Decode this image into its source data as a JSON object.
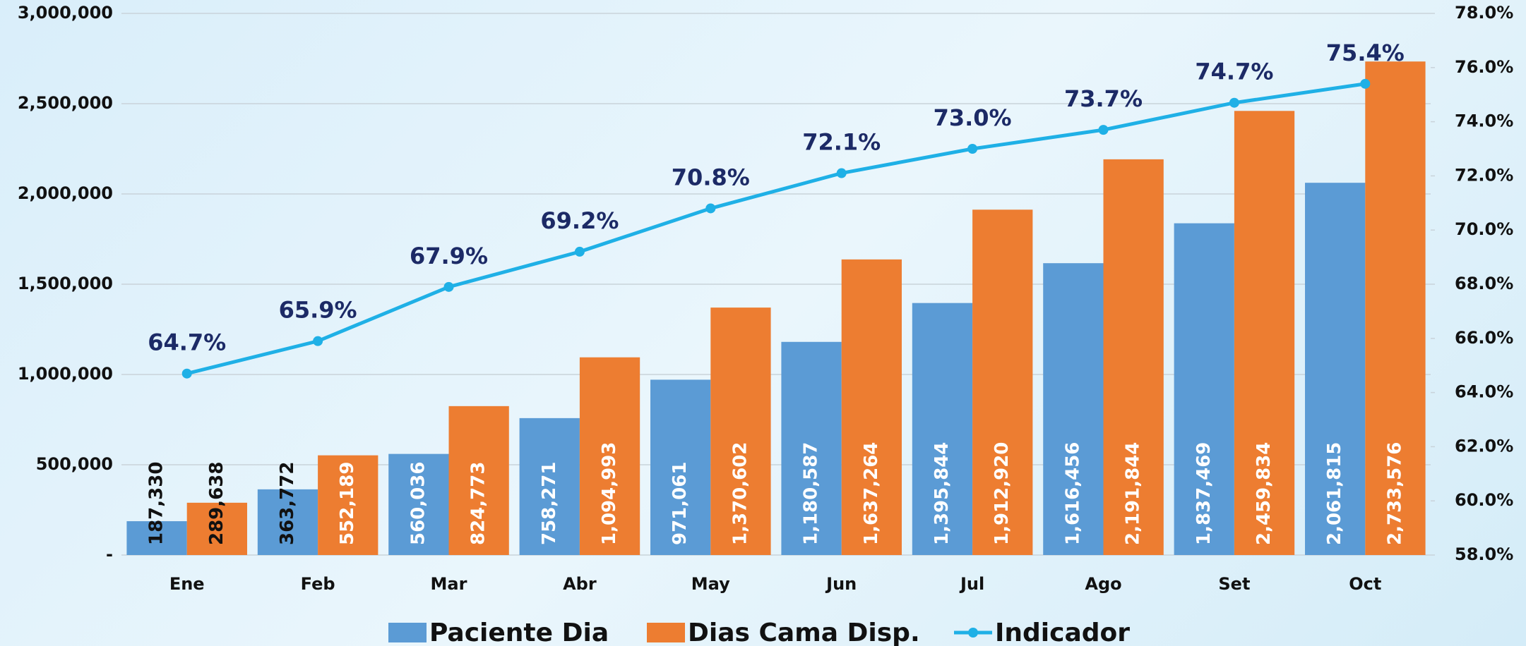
{
  "chart_data": {
    "type": "bar",
    "categories": [
      "Ene",
      "Feb",
      "Mar",
      "Abr",
      "May",
      "Jun",
      "Jul",
      "Ago",
      "Set",
      "Oct"
    ],
    "series": [
      {
        "name": "Paciente Dia",
        "color": "#5b9bd5",
        "values": [
          187330,
          363772,
          560036,
          758271,
          971061,
          1180587,
          1395844,
          1616456,
          1837469,
          2061815
        ],
        "value_labels": [
          "187,330",
          "363,772",
          "560,036",
          "758,271",
          "971,061",
          "1,180,587",
          "1,395,844",
          "1,616,456",
          "1,837,469",
          "2,061,815"
        ]
      },
      {
        "name": "Dias Cama Disp.",
        "color": "#ed7d31",
        "values": [
          289638,
          552189,
          824773,
          1094993,
          1370602,
          1637264,
          1912920,
          2191844,
          2459834,
          2733576
        ],
        "value_labels": [
          "289,638",
          "552,189",
          "824,773",
          "1,094,993",
          "1,370,602",
          "1,637,264",
          "1,912,920",
          "2,191,844",
          "2,459,834",
          "2,733,576"
        ]
      },
      {
        "name": "Indicador",
        "color": "#1fb0e6",
        "type": "line",
        "axis": "y2",
        "values": [
          64.7,
          65.9,
          67.9,
          69.2,
          70.8,
          72.1,
          73.0,
          73.7,
          74.7,
          75.4
        ],
        "value_labels": [
          "64.7%",
          "65.9%",
          "67.9%",
          "69.2%",
          "70.8%",
          "72.1%",
          "73.0%",
          "73.7%",
          "74.7%",
          "75.4%"
        ]
      }
    ],
    "ylim": [
      0,
      3000000
    ],
    "yticks": [
      {
        "value": 0,
        "label": "-"
      },
      {
        "value": 500000,
        "label": "500,000"
      },
      {
        "value": 1000000,
        "label": "1,000,000"
      },
      {
        "value": 1500000,
        "label": "1,500,000"
      },
      {
        "value": 2000000,
        "label": "2,000,000"
      },
      {
        "value": 2500000,
        "label": "2,500,000"
      },
      {
        "value": 3000000,
        "label": "3,000,000"
      }
    ],
    "y2lim": [
      58,
      78
    ],
    "y2ticks": [
      {
        "value": 58,
        "label": "58.0%"
      },
      {
        "value": 60,
        "label": "60.0%"
      },
      {
        "value": 62,
        "label": "62.0%"
      },
      {
        "value": 64,
        "label": "64.0%"
      },
      {
        "value": 66,
        "label": "66.0%"
      },
      {
        "value": 68,
        "label": "68.0%"
      },
      {
        "value": 70,
        "label": "70.0%"
      },
      {
        "value": 72,
        "label": "72.0%"
      },
      {
        "value": 74,
        "label": "74.0%"
      },
      {
        "value": 76,
        "label": "76.0%"
      },
      {
        "value": 78,
        "label": "78.0%"
      }
    ],
    "grid": true,
    "legend": "bottom"
  }
}
